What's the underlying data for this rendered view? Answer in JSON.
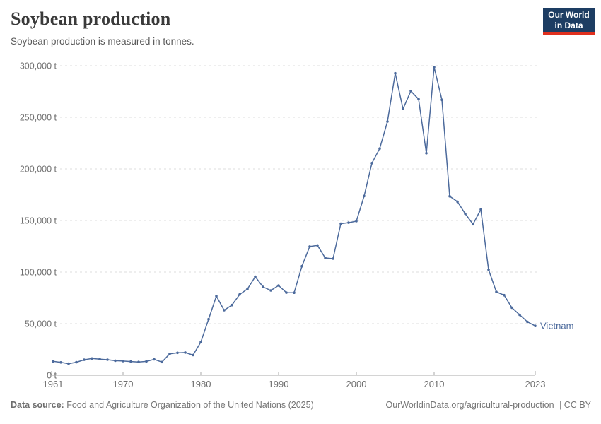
{
  "header": {
    "title": "Soybean production",
    "subtitle": "Soybean production is measured in tonnes."
  },
  "logo": {
    "line1": "Our World",
    "line2": "in Data"
  },
  "footer": {
    "source_label": "Data source:",
    "source_text": "Food and Agriculture Organization of the United Nations (2025)",
    "link_text": "OurWorldinData.org/agricultural-production",
    "license_text": "| CC BY"
  },
  "chart_data": {
    "type": "line",
    "title": "Soybean production",
    "ylabel": "",
    "xlabel": "",
    "unit": "t",
    "xlim": [
      1961,
      2023
    ],
    "ylim": [
      0,
      300000
    ],
    "xticks": [
      1961,
      1970,
      1980,
      1990,
      2000,
      2010,
      2023
    ],
    "yticks": [
      0,
      50000,
      100000,
      150000,
      200000,
      250000,
      300000
    ],
    "grid": "horizontal-dashed",
    "legend": "end-of-line-label",
    "colors": {
      "line": "#4C6A9C",
      "grid": "#DEDEDE",
      "axis": "#A8A8A8",
      "axis_text": "#6E6E6E",
      "logo_bg": "#1D3D63",
      "logo_red": "#E0301E"
    },
    "series": [
      {
        "name": "Vietnam",
        "color": "#4C6A9C",
        "x": [
          1961,
          1962,
          1963,
          1964,
          1965,
          1966,
          1967,
          1968,
          1969,
          1970,
          1971,
          1972,
          1973,
          1974,
          1975,
          1976,
          1977,
          1978,
          1979,
          1980,
          1981,
          1982,
          1983,
          1984,
          1985,
          1986,
          1987,
          1988,
          1989,
          1990,
          1991,
          1992,
          1993,
          1994,
          1995,
          1996,
          1997,
          1998,
          1999,
          2000,
          2001,
          2002,
          2003,
          2004,
          2005,
          2006,
          2007,
          2008,
          2009,
          2010,
          2011,
          2012,
          2013,
          2014,
          2015,
          2016,
          2017,
          2018,
          2019,
          2020,
          2021,
          2022,
          2023
        ],
        "values": [
          13500,
          12500,
          11200,
          12600,
          15000,
          16200,
          15600,
          15100,
          14100,
          13800,
          13300,
          12900,
          13400,
          15400,
          12800,
          20700,
          21700,
          22000,
          19500,
          32100,
          54300,
          76700,
          63000,
          68000,
          78300,
          83600,
          95500,
          85600,
          82200,
          87000,
          80100,
          80000,
          105700,
          124700,
          125800,
          113700,
          113000,
          146900,
          147900,
          149300,
          173700,
          205600,
          219700,
          245900,
          292700,
          258100,
          275500,
          267600,
          215200,
          298600,
          266900,
          173500,
          168200,
          156500,
          146400,
          160700,
          102300,
          80800,
          77600,
          65400,
          58500,
          51700,
          47800
        ]
      }
    ]
  }
}
